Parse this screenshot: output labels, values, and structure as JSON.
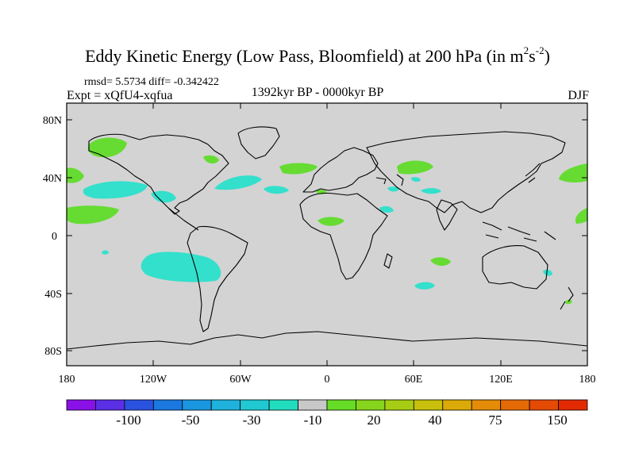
{
  "title": {
    "main": "Eddy Kinetic Energy (Low Pass, Bloomfield) at 200 hPa (in m",
    "sup1": "2",
    "unit_s": "s",
    "sup2": "-2",
    "close": ")"
  },
  "stats": "rmsd= 5.5734 diff= -0.342422",
  "expt": "Expt = xQfU4-xqfua",
  "period": "1392kyr BP - 0000kyr BP",
  "season": "DJF",
  "axes": {
    "lat_labels": [
      "80N",
      "40N",
      "0",
      "40S",
      "80S"
    ],
    "lon_labels": [
      "180",
      "120W",
      "60W",
      "0",
      "60E",
      "120E",
      "180"
    ]
  },
  "colorbar": {
    "labels": [
      "-100",
      "-50",
      "-30",
      "-10",
      "20",
      "40",
      "75",
      "150"
    ],
    "colors": [
      "#8a10e8",
      "#5a2fe6",
      "#2a52e0",
      "#1a78e0",
      "#1b96e0",
      "#1eb2dc",
      "#20c8d2",
      "#22dcbe",
      "#c8c8c8",
      "#66dc26",
      "#86d41c",
      "#a6cc14",
      "#c8c00c",
      "#dcaa08",
      "#e48c08",
      "#e46a06",
      "#e44a04",
      "#e22a02"
    ]
  },
  "colors": {
    "land_ocean": "#d3d3d3",
    "positive": "#66dc33",
    "negative": "#33e0cc"
  }
}
